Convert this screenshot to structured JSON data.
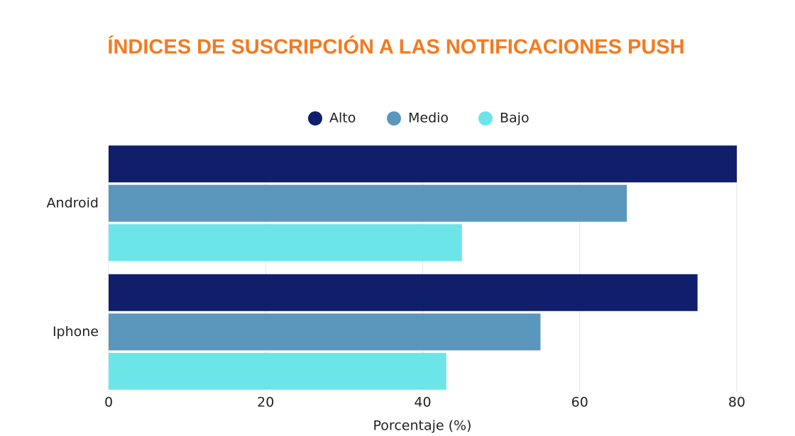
{
  "chart_data": {
    "type": "hbar",
    "title": "ÍNDICES DE SUSCRIPCIÓN A LAS NOTIFICACIONES PUSH",
    "x_label": "Porcentaje (%)",
    "categories": [
      "Android",
      "Iphone"
    ],
    "series": [
      {
        "name": "Alto",
        "color": "#0f1f6b",
        "values": [
          80,
          75
        ]
      },
      {
        "name": "Medio",
        "color": "#5b97bd",
        "values": [
          66,
          55
        ]
      },
      {
        "name": "Bajo",
        "color": "#6be5e8",
        "values": [
          45,
          43
        ]
      }
    ],
    "xlim": [
      0,
      80
    ],
    "xticks": [
      0,
      20,
      40,
      60,
      80
    ],
    "grid": true,
    "legend": "top"
  }
}
